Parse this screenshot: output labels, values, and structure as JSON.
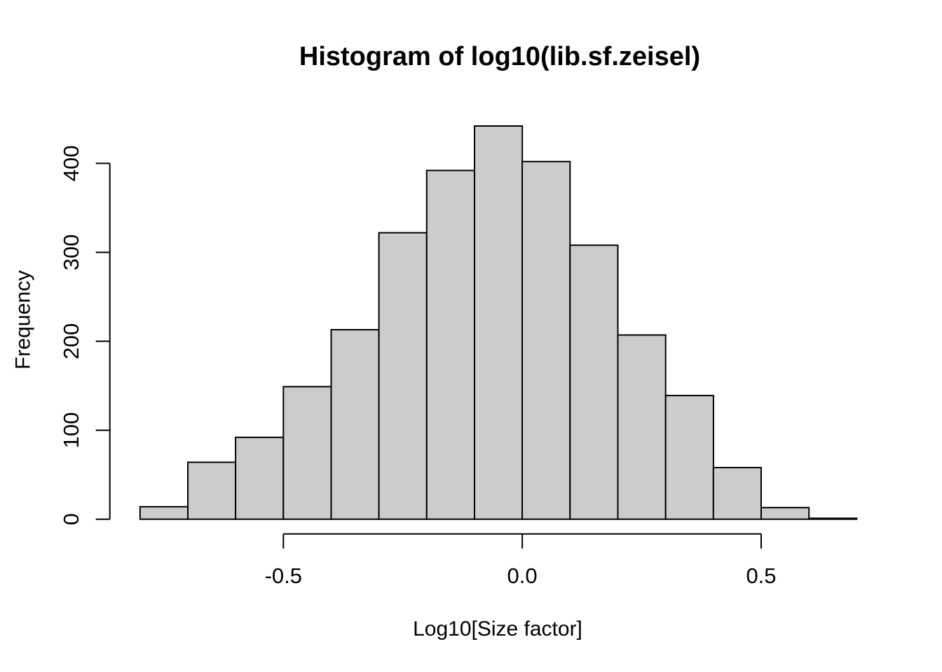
{
  "chart_data": {
    "type": "bar",
    "subtype": "histogram",
    "title": "Histogram of log10(lib.sf.zeisel)",
    "xlabel": "Log10[Size factor]",
    "ylabel": "Frequency",
    "bin_start": -0.8,
    "bin_width": 0.1,
    "bin_edges": [
      -0.8,
      -0.7,
      -0.6,
      -0.5,
      -0.4,
      -0.3,
      -0.2,
      -0.1,
      0.0,
      0.1,
      0.2,
      0.3,
      0.4,
      0.5,
      0.6,
      0.7
    ],
    "counts": [
      14,
      64,
      92,
      149,
      213,
      322,
      392,
      442,
      402,
      308,
      207,
      139,
      58,
      13,
      1
    ],
    "total_count": 2816,
    "x_ticks": [
      {
        "value": -0.5,
        "label": "-0.5"
      },
      {
        "value": 0.0,
        "label": "0.0"
      },
      {
        "value": 0.5,
        "label": "0.5"
      }
    ],
    "y_ticks": [
      {
        "value": 0,
        "label": "0"
      },
      {
        "value": 100,
        "label": "100"
      },
      {
        "value": 200,
        "label": "200"
      },
      {
        "value": 300,
        "label": "300"
      },
      {
        "value": 400,
        "label": "400"
      }
    ],
    "xlim": [
      -0.5,
      0.5
    ],
    "ylim": [
      0,
      400
    ],
    "grid": "off",
    "legend": "none",
    "colors": {
      "bar_fill": "#cccccc",
      "bar_stroke": "#000000",
      "axis_stroke": "#000000",
      "background": "#ffffff"
    }
  }
}
